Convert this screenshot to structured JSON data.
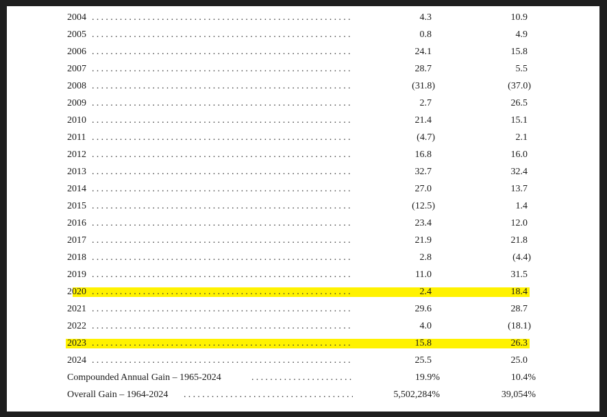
{
  "rows": [
    {
      "label": "2004",
      "v1": "4.3",
      "v2": "10.9"
    },
    {
      "label": "2005",
      "v1": "0.8",
      "v2": "4.9"
    },
    {
      "label": "2006",
      "v1": "24.1",
      "v2": "15.8"
    },
    {
      "label": "2007",
      "v1": "28.7",
      "v2": "5.5"
    },
    {
      "label": "2008",
      "v1": "(31.8)",
      "v2": "(37.0)"
    },
    {
      "label": "2009",
      "v1": "2.7",
      "v2": "26.5"
    },
    {
      "label": "2010",
      "v1": "21.4",
      "v2": "15.1"
    },
    {
      "label": "2011",
      "v1": "(4.7)",
      "v2": "2.1"
    },
    {
      "label": "2012",
      "v1": "16.8",
      "v2": "16.0"
    },
    {
      "label": "2013",
      "v1": "32.7",
      "v2": "32.4"
    },
    {
      "label": "2014",
      "v1": "27.0",
      "v2": "13.7"
    },
    {
      "label": "2015",
      "v1": "(12.5)",
      "v2": "1.4"
    },
    {
      "label": "2016",
      "v1": "23.4",
      "v2": "12.0"
    },
    {
      "label": "2017",
      "v1": "21.9",
      "v2": "21.8"
    },
    {
      "label": "2018",
      "v1": "2.8",
      "v2": "(4.4)"
    },
    {
      "label": "2019",
      "v1": "11.0",
      "v2": "31.5"
    },
    {
      "label": "2020",
      "v1": "2.4",
      "v2": "18.4"
    },
    {
      "label": "2021",
      "v1": "29.6",
      "v2": "28.7"
    },
    {
      "label": "2022",
      "v1": "4.0",
      "v2": "(18.1)"
    },
    {
      "label": "2023",
      "v1": "15.8",
      "v2": "26.3"
    },
    {
      "label": "2024",
      "v1": "25.5",
      "v2": "25.0"
    },
    {
      "label": "Compounded Annual Gain – 1965-2024",
      "v1": "19.9%",
      "v2": "10.4%"
    },
    {
      "label": "Overall Gain – 1964-2024",
      "v1": "5,502,284%",
      "v2": "39,054%"
    }
  ],
  "highlighted_rows": [
    "2020",
    "2023"
  ],
  "highlight_color": "#fff200"
}
